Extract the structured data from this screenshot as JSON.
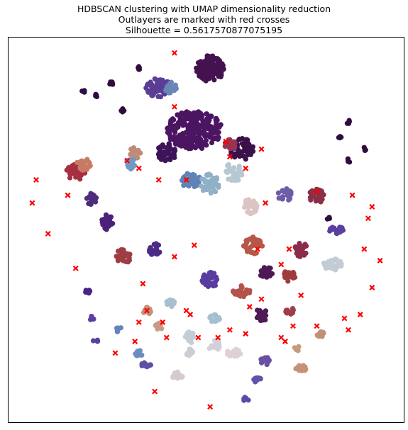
{
  "chart_data": {
    "type": "scatter",
    "title": "HDBSCAN clustering with UMAP dimensionality reduction",
    "subtitle": "Outlayers are marked with red crosses",
    "metric_line": "Silhouette = 0.5617570877075195",
    "xlabel": "",
    "ylabel": "",
    "axes_ticks": "none",
    "grid": false,
    "xlim": [
      0,
      100
    ],
    "ylim": [
      0,
      100
    ],
    "colormap": "twilight",
    "outlier_marker": {
      "shape": "x",
      "color": "#ff0000"
    },
    "clusters": [
      {
        "color": "#4b1561",
        "x": 47,
        "y": 76,
        "rx": 7,
        "ry": 5,
        "n": 260
      },
      {
        "color": "#451250",
        "x": 51,
        "y": 92,
        "rx": 3.5,
        "ry": 3.5,
        "n": 120
      },
      {
        "color": "#5b3d93",
        "x": 38,
        "y": 87,
        "rx": 3.5,
        "ry": 2.5,
        "n": 60
      },
      {
        "color": "#6a86b7",
        "x": 41,
        "y": 87,
        "rx": 1.5,
        "ry": 1.5,
        "n": 25
      },
      {
        "color": "#3d1459",
        "x": 40,
        "y": 70,
        "rx": 2.5,
        "ry": 2.5,
        "n": 45
      },
      {
        "color": "#3a1149",
        "x": 59,
        "y": 71,
        "rx": 3.0,
        "ry": 3.0,
        "n": 60
      },
      {
        "color": "#9a3352",
        "x": 56,
        "y": 72,
        "rx": 1.5,
        "ry": 1.5,
        "n": 25
      },
      {
        "color": "#5f83b8",
        "x": 46,
        "y": 63,
        "rx": 2.5,
        "ry": 2.0,
        "n": 45
      },
      {
        "color": "#8fb0c6",
        "x": 51,
        "y": 62,
        "rx": 2.5,
        "ry": 2.5,
        "n": 40
      },
      {
        "color": "#b7c8d3",
        "x": 57,
        "y": 65,
        "rx": 2.5,
        "ry": 2.5,
        "n": 35
      },
      {
        "color": "#bf8a78",
        "x": 32,
        "y": 70,
        "rx": 1.5,
        "ry": 1.5,
        "n": 20
      },
      {
        "color": "#7199c1",
        "x": 31,
        "y": 67,
        "rx": 1.5,
        "ry": 1.5,
        "n": 20
      },
      {
        "color": "#a53040",
        "x": 17,
        "y": 65,
        "rx": 2.5,
        "ry": 2.0,
        "n": 40
      },
      {
        "color": "#c87a64",
        "x": 19,
        "y": 67,
        "rx": 1.8,
        "ry": 1.5,
        "n": 30
      },
      {
        "color": "#4e2b7b",
        "x": 21,
        "y": 58,
        "rx": 1.3,
        "ry": 1.5,
        "n": 20
      },
      {
        "color": "#4a2279",
        "x": 25,
        "y": 52,
        "rx": 1.5,
        "ry": 2.0,
        "n": 25
      },
      {
        "color": "#9f3d44",
        "x": 29,
        "y": 43,
        "rx": 1.8,
        "ry": 2.2,
        "n": 30
      },
      {
        "color": "#4a2c86",
        "x": 37,
        "y": 45,
        "rx": 1.5,
        "ry": 1.8,
        "n": 25
      },
      {
        "color": "#dcc4c2",
        "x": 61,
        "y": 56,
        "rx": 2.0,
        "ry": 2.0,
        "n": 30
      },
      {
        "color": "#6e5ca8",
        "x": 70,
        "y": 59,
        "rx": 1.8,
        "ry": 1.8,
        "n": 25
      },
      {
        "color": "#8a2f47",
        "x": 78,
        "y": 59,
        "rx": 2.2,
        "ry": 2.0,
        "n": 30
      },
      {
        "color": "#5a3fa0",
        "x": 83,
        "y": 50,
        "rx": 1.8,
        "ry": 1.0,
        "n": 20
      },
      {
        "color": "#b65747",
        "x": 62,
        "y": 46,
        "rx": 2.5,
        "ry": 2.2,
        "n": 40
      },
      {
        "color": "#8a2c4a",
        "x": 74,
        "y": 45,
        "rx": 1.5,
        "ry": 2.0,
        "n": 25
      },
      {
        "color": "#c3ccd4",
        "x": 82,
        "y": 41,
        "rx": 2.5,
        "ry": 1.5,
        "n": 30
      },
      {
        "color": "#4d1a55",
        "x": 65,
        "y": 39,
        "rx": 1.8,
        "ry": 1.5,
        "n": 25
      },
      {
        "color": "#9f3c3f",
        "x": 71,
        "y": 38,
        "rx": 1.5,
        "ry": 1.5,
        "n": 20
      },
      {
        "color": "#5a3ca0",
        "x": 51,
        "y": 37,
        "rx": 2.0,
        "ry": 2.0,
        "n": 30
      },
      {
        "color": "#b4524c",
        "x": 59,
        "y": 34,
        "rx": 2.2,
        "ry": 1.5,
        "n": 30
      },
      {
        "color": "#4f1a56",
        "x": 64,
        "y": 28,
        "rx": 1.5,
        "ry": 2.0,
        "n": 25
      },
      {
        "color": "#9f3d4a",
        "x": 71,
        "y": 29,
        "rx": 1.2,
        "ry": 1.0,
        "n": 15
      },
      {
        "color": "#a8bfcf",
        "x": 41,
        "y": 31,
        "rx": 1.0,
        "ry": 1.2,
        "n": 14
      },
      {
        "color": "#c29079",
        "x": 35,
        "y": 29,
        "rx": 1.0,
        "ry": 1.0,
        "n": 12
      },
      {
        "color": "#c79b85",
        "x": 38,
        "y": 25,
        "rx": 1.0,
        "ry": 1.0,
        "n": 12
      },
      {
        "color": "#a6bfcf",
        "x": 52,
        "y": 27,
        "rx": 1.5,
        "ry": 1.0,
        "n": 16
      },
      {
        "color": "#c3cdd6",
        "x": 46,
        "y": 22,
        "rx": 1.5,
        "ry": 1.5,
        "n": 18
      },
      {
        "color": "#d4d0d9",
        "x": 52,
        "y": 20,
        "rx": 1.5,
        "ry": 1.5,
        "n": 18
      },
      {
        "color": "#ddd1d6",
        "x": 57,
        "y": 18,
        "rx": 1.8,
        "ry": 1.0,
        "n": 18
      },
      {
        "color": "#c9ced4",
        "x": 46,
        "y": 18,
        "rx": 1.0,
        "ry": 1.0,
        "n": 10
      },
      {
        "color": "#6b8dbf",
        "x": 33,
        "y": 18,
        "rx": 1.2,
        "ry": 0.8,
        "n": 12
      },
      {
        "color": "#6483be",
        "x": 28,
        "y": 24,
        "rx": 0.8,
        "ry": 0.8,
        "n": 8
      },
      {
        "color": "#6a4fa4",
        "x": 65,
        "y": 16,
        "rx": 1.5,
        "ry": 1.2,
        "n": 18
      },
      {
        "color": "#5f55a8",
        "x": 63,
        "y": 11,
        "rx": 1.0,
        "ry": 0.8,
        "n": 10
      },
      {
        "color": "#c28f77",
        "x": 79,
        "y": 23,
        "rx": 1.0,
        "ry": 0.8,
        "n": 12
      },
      {
        "color": "#c49275",
        "x": 74,
        "y": 14,
        "rx": 1.5,
        "ry": 0.8,
        "n": 14
      },
      {
        "color": "#c79b7e",
        "x": 73,
        "y": 19,
        "rx": 0.8,
        "ry": 0.8,
        "n": 8
      },
      {
        "color": "#d4cbd2",
        "x": 43,
        "y": 12,
        "rx": 1.5,
        "ry": 1.2,
        "n": 15
      },
      {
        "color": "#5f4fa5",
        "x": 35,
        "y": 15,
        "rx": 1.5,
        "ry": 0.6,
        "n": 12
      },
      {
        "color": "#5a4ba7",
        "x": 60,
        "y": 6,
        "rx": 0.8,
        "ry": 0.6,
        "n": 8
      },
      {
        "color": "#4a2288",
        "x": 20,
        "y": 34,
        "rx": 0.6,
        "ry": 0.6,
        "n": 6
      },
      {
        "color": "#5a3ea2",
        "x": 21,
        "y": 27,
        "rx": 0.6,
        "ry": 0.6,
        "n": 6
      },
      {
        "color": "#5a3ea2",
        "x": 22,
        "y": 21,
        "rx": 0.6,
        "ry": 0.6,
        "n": 6
      },
      {
        "color": "#2f0d3f",
        "x": 26,
        "y": 88,
        "rx": 0.6,
        "ry": 0.5,
        "n": 6
      },
      {
        "color": "#2f0d3f",
        "x": 19,
        "y": 86,
        "rx": 0.5,
        "ry": 0.5,
        "n": 5
      },
      {
        "color": "#2f0d3f",
        "x": 22,
        "y": 85,
        "rx": 0.5,
        "ry": 0.5,
        "n": 5
      },
      {
        "color": "#2f0d3f",
        "x": 33,
        "y": 92,
        "rx": 0.5,
        "ry": 0.5,
        "n": 5
      },
      {
        "color": "#2f0d3f",
        "x": 29,
        "y": 81,
        "rx": 0.5,
        "ry": 0.5,
        "n": 5
      },
      {
        "color": "#2f0d3f",
        "x": 86,
        "y": 78,
        "rx": 0.5,
        "ry": 0.5,
        "n": 4
      },
      {
        "color": "#2f0d3f",
        "x": 84,
        "y": 74,
        "rx": 0.5,
        "ry": 0.5,
        "n": 4
      },
      {
        "color": "#2f0d3f",
        "x": 90,
        "y": 71,
        "rx": 0.5,
        "ry": 0.5,
        "n": 4
      },
      {
        "color": "#2f0d3f",
        "x": 86,
        "y": 68,
        "rx": 0.5,
        "ry": 0.5,
        "n": 4
      },
      {
        "color": "#2f0d3f",
        "x": 81,
        "y": 53,
        "rx": 0.4,
        "ry": 0.4,
        "n": 3
      }
    ],
    "outliers": [
      [
        42,
        96
      ],
      [
        7,
        63
      ],
      [
        6,
        57
      ],
      [
        10,
        49
      ],
      [
        17,
        40
      ],
      [
        34,
        36
      ],
      [
        42,
        43
      ],
      [
        45,
        29
      ],
      [
        48,
        22
      ],
      [
        39,
        26
      ],
      [
        33,
        26
      ],
      [
        35,
        29
      ],
      [
        32,
        21
      ],
      [
        27,
        18
      ],
      [
        37,
        8
      ],
      [
        51,
        4
      ],
      [
        40,
        22
      ],
      [
        46,
        28
      ],
      [
        53,
        22
      ],
      [
        56,
        24
      ],
      [
        60,
        23
      ],
      [
        69,
        22
      ],
      [
        70,
        21
      ],
      [
        72,
        25
      ],
      [
        78,
        25
      ],
      [
        74,
        33
      ],
      [
        85,
        27
      ],
      [
        86,
        24
      ],
      [
        89,
        28
      ],
      [
        92,
        35
      ],
      [
        94,
        42
      ],
      [
        90,
        45
      ],
      [
        91,
        53
      ],
      [
        92,
        56
      ],
      [
        87,
        59
      ],
      [
        78,
        60
      ],
      [
        71,
        45
      ],
      [
        69,
        41
      ],
      [
        63,
        45
      ],
      [
        64,
        32
      ],
      [
        61,
        30
      ],
      [
        60,
        66
      ],
      [
        64,
        71
      ],
      [
        55,
        73
      ],
      [
        65,
        57
      ],
      [
        56,
        69
      ],
      [
        30,
        68
      ],
      [
        33,
        66
      ],
      [
        42,
        82
      ],
      [
        45,
        63
      ],
      [
        38,
        63
      ],
      [
        15,
        59
      ],
      [
        47,
        46
      ]
    ]
  }
}
